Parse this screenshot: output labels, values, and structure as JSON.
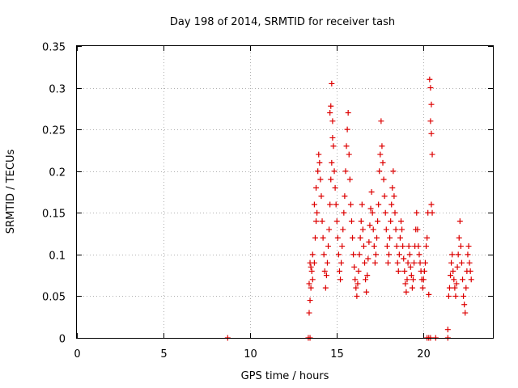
{
  "chart_data": {
    "type": "scatter",
    "title": "Day 198 of 2014, SRMTID for receiver tash",
    "xlabel": "GPS time / hours",
    "ylabel": "SRMTID / TECUs",
    "xlim": [
      0,
      24
    ],
    "ylim": [
      0,
      0.35
    ],
    "xticks": [
      0,
      5,
      10,
      15,
      20
    ],
    "xtick_labels": [
      "0",
      "5",
      "10",
      "15",
      "20"
    ],
    "yticks": [
      0,
      0.05,
      0.1,
      0.15,
      0.2,
      0.25,
      0.3,
      0.35
    ],
    "ytick_labels": [
      "0",
      "0.05",
      "0.1",
      "0.15",
      "0.2",
      "0.25",
      "0.3",
      "0.35"
    ],
    "grid": true,
    "marker": "+",
    "color": "#dd0000",
    "series": [
      {
        "name": "SRMTID",
        "points": [
          [
            8.7,
            0.0
          ],
          [
            13.35,
            0.0
          ],
          [
            13.45,
            0.0
          ],
          [
            20.2,
            0.0
          ],
          [
            20.3,
            0.0
          ],
          [
            20.4,
            0.0
          ],
          [
            20.7,
            0.0
          ],
          [
            21.4,
            0.0
          ],
          [
            13.4,
            0.03
          ],
          [
            13.45,
            0.045
          ],
          [
            13.5,
            0.06
          ],
          [
            13.4,
            0.065
          ],
          [
            13.55,
            0.08
          ],
          [
            13.45,
            0.09
          ],
          [
            13.6,
            0.1
          ],
          [
            13.5,
            0.085
          ],
          [
            13.6,
            0.07
          ],
          [
            13.7,
            0.09
          ],
          [
            13.75,
            0.12
          ],
          [
            13.8,
            0.14
          ],
          [
            13.85,
            0.15
          ],
          [
            13.7,
            0.16
          ],
          [
            13.8,
            0.18
          ],
          [
            13.9,
            0.2
          ],
          [
            13.95,
            0.22
          ],
          [
            14.0,
            0.21
          ],
          [
            14.05,
            0.19
          ],
          [
            14.1,
            0.17
          ],
          [
            14.15,
            0.14
          ],
          [
            14.2,
            0.12
          ],
          [
            14.25,
            0.1
          ],
          [
            14.3,
            0.08
          ],
          [
            14.35,
            0.06
          ],
          [
            14.4,
            0.075
          ],
          [
            14.45,
            0.09
          ],
          [
            14.5,
            0.11
          ],
          [
            14.55,
            0.13
          ],
          [
            14.6,
            0.16
          ],
          [
            14.65,
            0.19
          ],
          [
            14.7,
            0.21
          ],
          [
            14.75,
            0.24
          ],
          [
            14.6,
            0.27
          ],
          [
            14.65,
            0.278
          ],
          [
            14.7,
            0.305
          ],
          [
            14.75,
            0.26
          ],
          [
            14.8,
            0.23
          ],
          [
            14.85,
            0.2
          ],
          [
            14.9,
            0.18
          ],
          [
            14.95,
            0.16
          ],
          [
            15.0,
            0.14
          ],
          [
            15.05,
            0.12
          ],
          [
            15.1,
            0.1
          ],
          [
            15.15,
            0.08
          ],
          [
            15.2,
            0.07
          ],
          [
            15.25,
            0.09
          ],
          [
            15.3,
            0.11
          ],
          [
            15.35,
            0.13
          ],
          [
            15.4,
            0.15
          ],
          [
            15.45,
            0.17
          ],
          [
            15.5,
            0.2
          ],
          [
            15.55,
            0.23
          ],
          [
            15.6,
            0.25
          ],
          [
            15.65,
            0.27
          ],
          [
            15.7,
            0.22
          ],
          [
            15.75,
            0.19
          ],
          [
            15.8,
            0.16
          ],
          [
            15.85,
            0.14
          ],
          [
            15.9,
            0.12
          ],
          [
            15.95,
            0.1
          ],
          [
            16.0,
            0.085
          ],
          [
            16.05,
            0.07
          ],
          [
            16.1,
            0.06
          ],
          [
            16.15,
            0.05
          ],
          [
            16.2,
            0.065
          ],
          [
            16.25,
            0.08
          ],
          [
            16.3,
            0.1
          ],
          [
            16.35,
            0.12
          ],
          [
            16.4,
            0.14
          ],
          [
            16.45,
            0.16
          ],
          [
            16.5,
            0.13
          ],
          [
            16.55,
            0.11
          ],
          [
            16.6,
            0.09
          ],
          [
            16.65,
            0.07
          ],
          [
            16.7,
            0.055
          ],
          [
            16.75,
            0.075
          ],
          [
            16.8,
            0.095
          ],
          [
            16.85,
            0.115
          ],
          [
            16.9,
            0.135
          ],
          [
            16.95,
            0.155
          ],
          [
            17.0,
            0.175
          ],
          [
            17.05,
            0.15
          ],
          [
            17.1,
            0.13
          ],
          [
            17.15,
            0.11
          ],
          [
            17.2,
            0.09
          ],
          [
            17.25,
            0.1
          ],
          [
            17.3,
            0.12
          ],
          [
            17.35,
            0.14
          ],
          [
            17.4,
            0.16
          ],
          [
            17.45,
            0.2
          ],
          [
            17.5,
            0.22
          ],
          [
            17.55,
            0.26
          ],
          [
            17.6,
            0.23
          ],
          [
            17.65,
            0.21
          ],
          [
            17.7,
            0.19
          ],
          [
            17.75,
            0.17
          ],
          [
            17.8,
            0.15
          ],
          [
            17.85,
            0.13
          ],
          [
            17.9,
            0.11
          ],
          [
            17.95,
            0.09
          ],
          [
            18.0,
            0.1
          ],
          [
            18.05,
            0.12
          ],
          [
            18.1,
            0.14
          ],
          [
            18.15,
            0.16
          ],
          [
            18.2,
            0.18
          ],
          [
            18.25,
            0.2
          ],
          [
            18.3,
            0.17
          ],
          [
            18.35,
            0.15
          ],
          [
            18.4,
            0.13
          ],
          [
            18.45,
            0.11
          ],
          [
            18.5,
            0.09
          ],
          [
            18.55,
            0.08
          ],
          [
            18.6,
            0.1
          ],
          [
            18.65,
            0.12
          ],
          [
            18.7,
            0.14
          ],
          [
            18.75,
            0.13
          ],
          [
            18.8,
            0.11
          ],
          [
            18.85,
            0.095
          ],
          [
            18.9,
            0.08
          ],
          [
            18.95,
            0.065
          ],
          [
            19.0,
            0.055
          ],
          [
            19.05,
            0.07
          ],
          [
            19.1,
            0.09
          ],
          [
            19.15,
            0.11
          ],
          [
            19.2,
            0.1
          ],
          [
            19.25,
            0.085
          ],
          [
            19.3,
            0.075
          ],
          [
            19.35,
            0.06
          ],
          [
            19.4,
            0.07
          ],
          [
            19.45,
            0.09
          ],
          [
            19.5,
            0.11
          ],
          [
            19.55,
            0.13
          ],
          [
            19.6,
            0.15
          ],
          [
            19.65,
            0.13
          ],
          [
            19.7,
            0.11
          ],
          [
            19.75,
            0.1
          ],
          [
            19.8,
            0.09
          ],
          [
            19.85,
            0.08
          ],
          [
            19.9,
            0.07
          ],
          [
            19.95,
            0.06
          ],
          [
            20.0,
            0.07
          ],
          [
            20.05,
            0.08
          ],
          [
            20.1,
            0.09
          ],
          [
            20.15,
            0.11
          ],
          [
            20.2,
            0.12
          ],
          [
            20.25,
            0.15
          ],
          [
            20.3,
            0.052
          ],
          [
            20.35,
            0.31
          ],
          [
            20.4,
            0.3
          ],
          [
            20.45,
            0.28
          ],
          [
            20.4,
            0.26
          ],
          [
            20.45,
            0.245
          ],
          [
            20.5,
            0.22
          ],
          [
            20.45,
            0.16
          ],
          [
            20.5,
            0.15
          ],
          [
            21.4,
            0.01
          ],
          [
            21.45,
            0.05
          ],
          [
            21.5,
            0.06
          ],
          [
            21.55,
            0.075
          ],
          [
            21.6,
            0.09
          ],
          [
            21.65,
            0.1
          ],
          [
            21.7,
            0.08
          ],
          [
            21.75,
            0.07
          ],
          [
            21.8,
            0.06
          ],
          [
            21.85,
            0.05
          ],
          [
            21.9,
            0.065
          ],
          [
            21.95,
            0.085
          ],
          [
            22.0,
            0.1
          ],
          [
            22.05,
            0.12
          ],
          [
            22.1,
            0.14
          ],
          [
            22.15,
            0.11
          ],
          [
            22.2,
            0.09
          ],
          [
            22.25,
            0.07
          ],
          [
            22.3,
            0.05
          ],
          [
            22.35,
            0.04
          ],
          [
            22.4,
            0.03
          ],
          [
            22.45,
            0.06
          ],
          [
            22.5,
            0.08
          ],
          [
            22.55,
            0.1
          ],
          [
            22.6,
            0.11
          ],
          [
            22.65,
            0.09
          ],
          [
            22.7,
            0.08
          ],
          [
            22.75,
            0.07
          ]
        ]
      }
    ]
  }
}
